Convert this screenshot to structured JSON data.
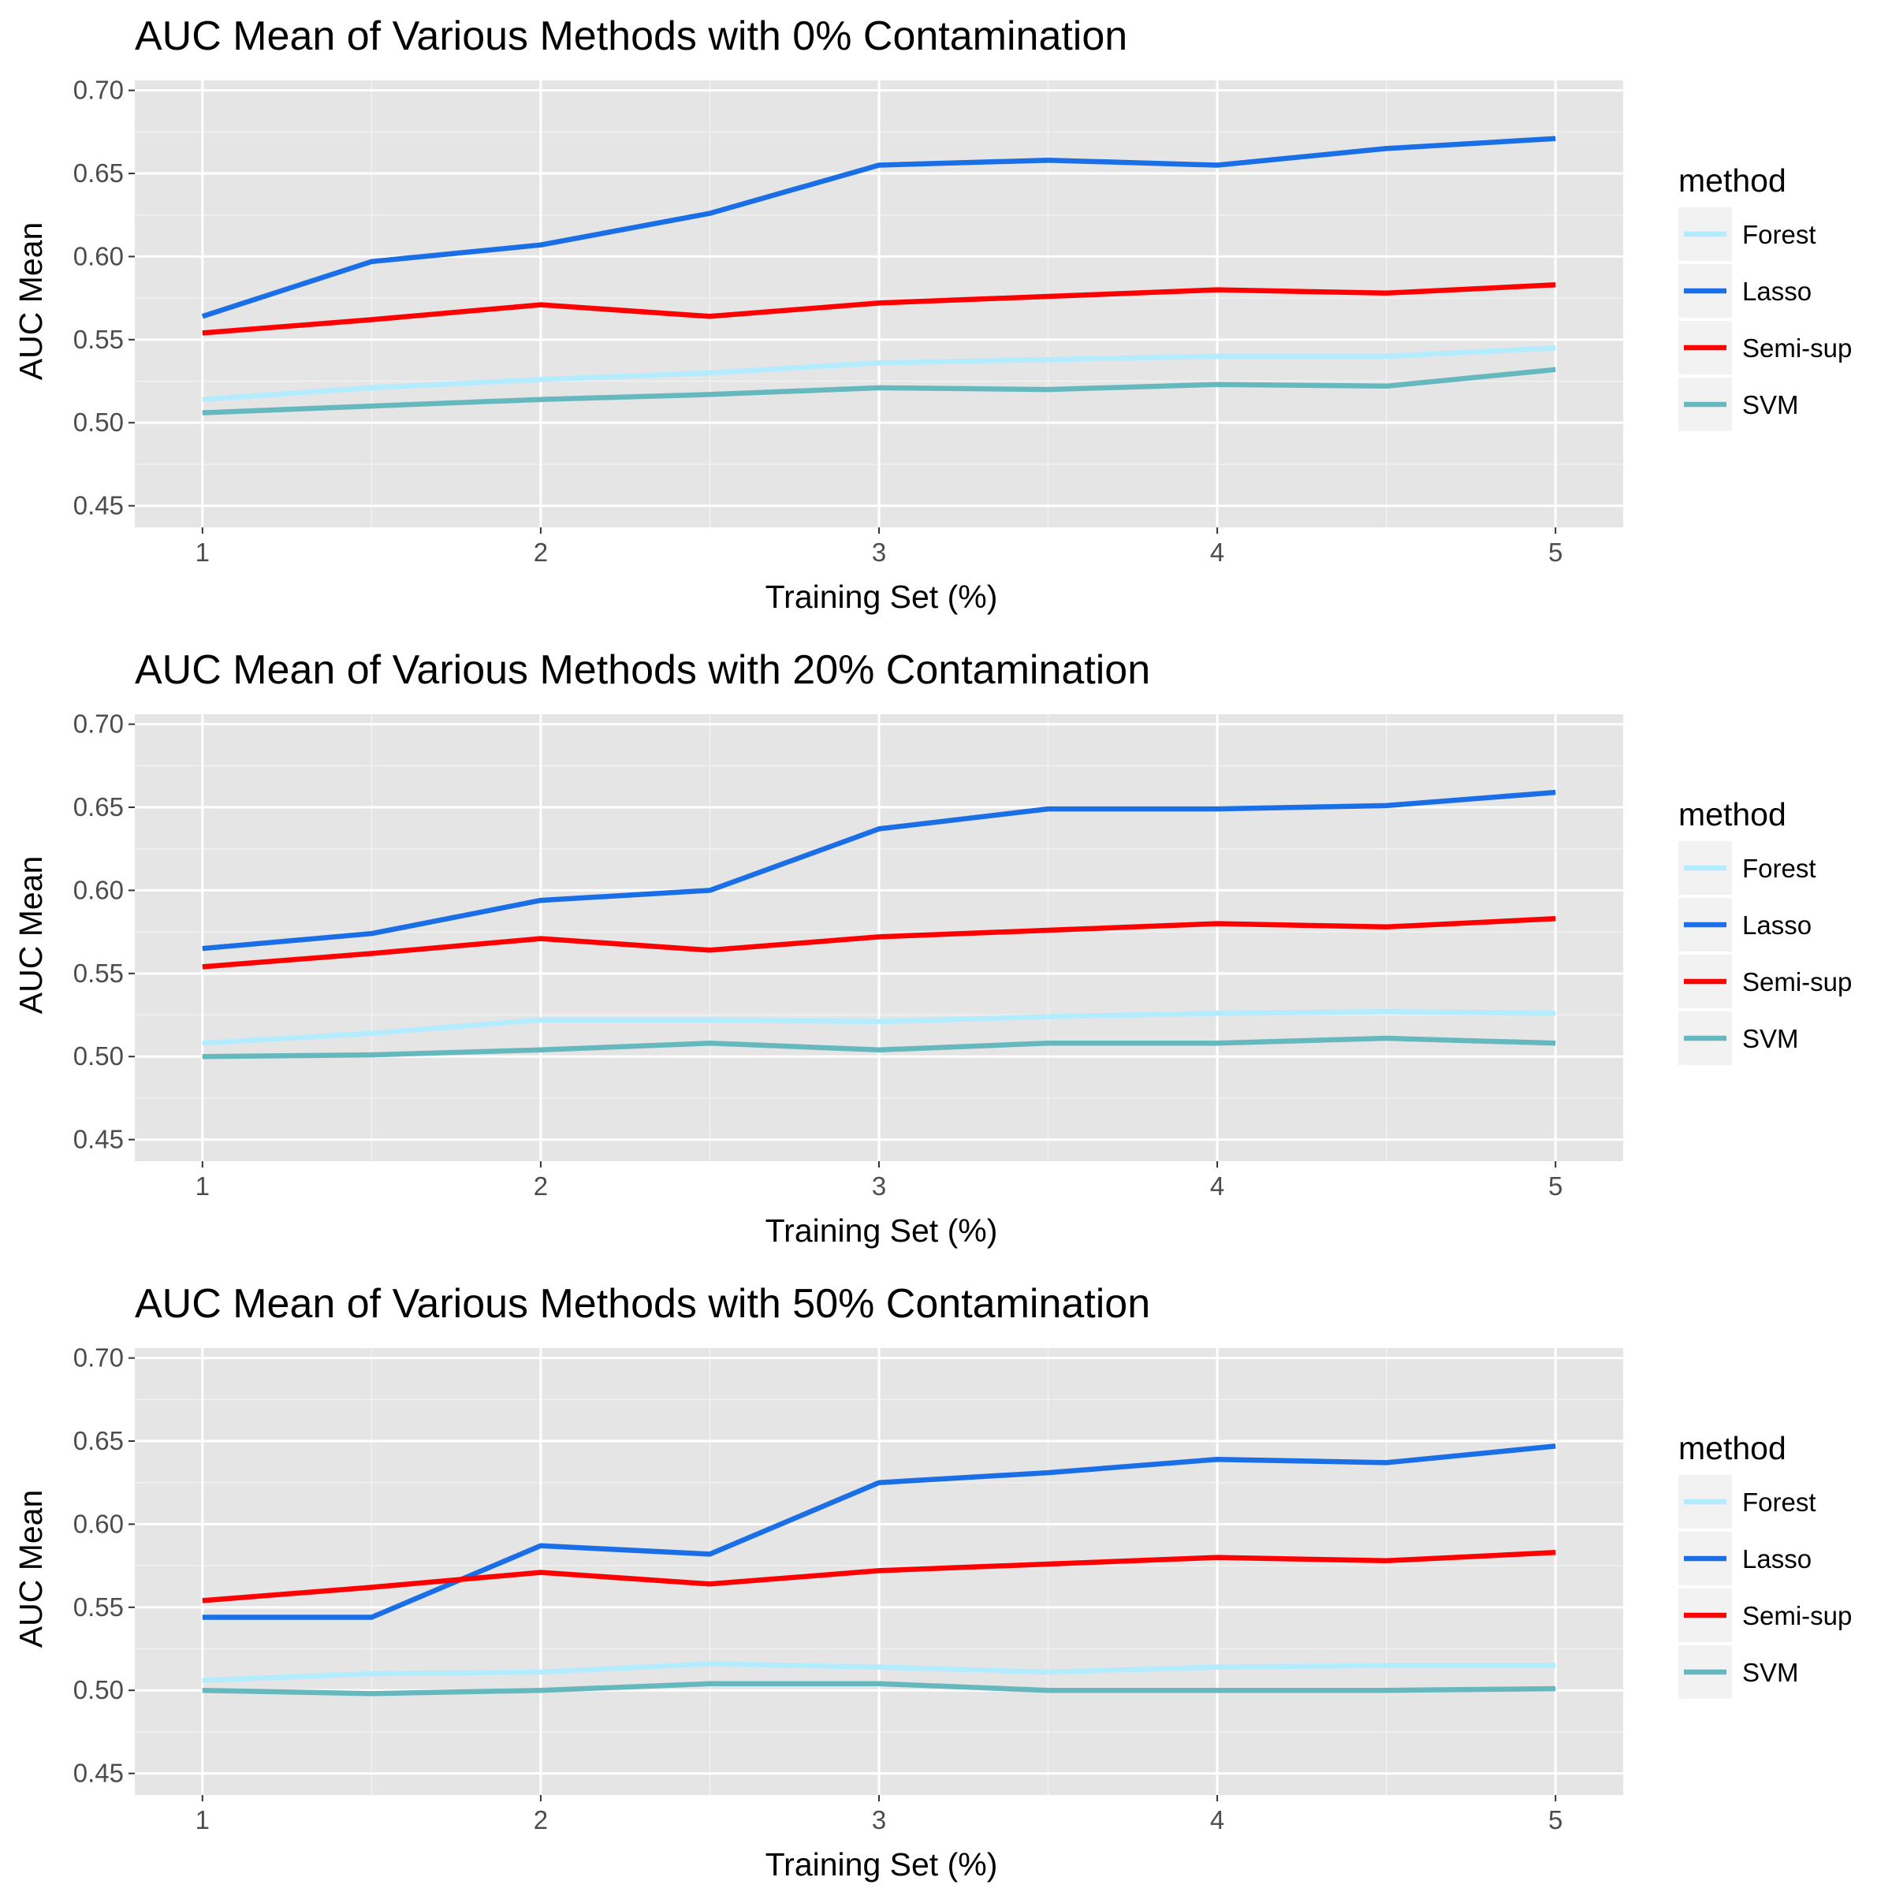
{
  "colors": {
    "panel_bg": "#e5e5e5",
    "grid_major": "#ffffff",
    "grid_minor": "#f2f2f2",
    "legend_key_bg": "#f2f2f2",
    "tick_label": "#4d4d4d"
  },
  "chart_data": [
    {
      "type": "line",
      "title": "AUC Mean of Various Methods with 0% Contamination",
      "xlabel": "Training Set (%)",
      "ylabel": "AUC Mean",
      "x": [
        1,
        1.5,
        2,
        2.5,
        3,
        3.5,
        4,
        4.5,
        5
      ],
      "xticks": [
        "1",
        "2",
        "3",
        "4",
        "5"
      ],
      "yticks": [
        "0.45",
        "0.50",
        "0.55",
        "0.60",
        "0.65",
        "0.70"
      ],
      "xlim": [
        0.8,
        5.2
      ],
      "ylim": [
        0.437,
        0.706
      ],
      "grid": true,
      "legend": {
        "title": "method",
        "position": "right"
      },
      "series": [
        {
          "name": "Forest",
          "color": "#b3ecff",
          "values": [
            0.514,
            0.521,
            0.526,
            0.53,
            0.536,
            0.538,
            0.54,
            0.54,
            0.545
          ]
        },
        {
          "name": "Lasso",
          "color": "#1a6ee6",
          "values": [
            0.564,
            0.597,
            0.607,
            0.626,
            0.655,
            0.658,
            0.655,
            0.665,
            0.671
          ]
        },
        {
          "name": "Semi-sup",
          "color": "#ff0000",
          "values": [
            0.554,
            0.562,
            0.571,
            0.564,
            0.572,
            0.576,
            0.58,
            0.578,
            0.583
          ]
        },
        {
          "name": "SVM",
          "color": "#66b8bf",
          "values": [
            0.506,
            0.51,
            0.514,
            0.517,
            0.521,
            0.52,
            0.523,
            0.522,
            0.532
          ]
        }
      ]
    },
    {
      "type": "line",
      "title": "AUC Mean of Various Methods with 20% Contamination",
      "xlabel": "Training Set (%)",
      "ylabel": "AUC Mean",
      "x": [
        1,
        1.5,
        2,
        2.5,
        3,
        3.5,
        4,
        4.5,
        5
      ],
      "xticks": [
        "1",
        "2",
        "3",
        "4",
        "5"
      ],
      "yticks": [
        "0.45",
        "0.50",
        "0.55",
        "0.60",
        "0.65",
        "0.70"
      ],
      "xlim": [
        0.8,
        5.2
      ],
      "ylim": [
        0.437,
        0.706
      ],
      "grid": true,
      "legend": {
        "title": "method",
        "position": "right"
      },
      "series": [
        {
          "name": "Forest",
          "color": "#b3ecff",
          "values": [
            0.508,
            0.514,
            0.522,
            0.522,
            0.521,
            0.524,
            0.526,
            0.527,
            0.526
          ]
        },
        {
          "name": "Lasso",
          "color": "#1a6ee6",
          "values": [
            0.565,
            0.574,
            0.594,
            0.6,
            0.637,
            0.649,
            0.649,
            0.651,
            0.659
          ]
        },
        {
          "name": "Semi-sup",
          "color": "#ff0000",
          "values": [
            0.554,
            0.562,
            0.571,
            0.564,
            0.572,
            0.576,
            0.58,
            0.578,
            0.583
          ]
        },
        {
          "name": "SVM",
          "color": "#66b8bf",
          "values": [
            0.5,
            0.501,
            0.504,
            0.508,
            0.504,
            0.508,
            0.508,
            0.511,
            0.508
          ]
        }
      ]
    },
    {
      "type": "line",
      "title": "AUC Mean of Various Methods with 50% Contamination",
      "xlabel": "Training Set (%)",
      "ylabel": "AUC Mean",
      "x": [
        1,
        1.5,
        2,
        2.5,
        3,
        3.5,
        4,
        4.5,
        5
      ],
      "xticks": [
        "1",
        "2",
        "3",
        "4",
        "5"
      ],
      "yticks": [
        "0.45",
        "0.50",
        "0.55",
        "0.60",
        "0.65",
        "0.70"
      ],
      "xlim": [
        0.8,
        5.2
      ],
      "ylim": [
        0.437,
        0.706
      ],
      "grid": true,
      "legend": {
        "title": "method",
        "position": "right"
      },
      "series": [
        {
          "name": "Forest",
          "color": "#b3ecff",
          "values": [
            0.506,
            0.51,
            0.511,
            0.516,
            0.514,
            0.511,
            0.514,
            0.515,
            0.515
          ]
        },
        {
          "name": "Lasso",
          "color": "#1a6ee6",
          "values": [
            0.544,
            0.544,
            0.587,
            0.582,
            0.625,
            0.631,
            0.639,
            0.637,
            0.647
          ]
        },
        {
          "name": "Semi-sup",
          "color": "#ff0000",
          "values": [
            0.554,
            0.562,
            0.571,
            0.564,
            0.572,
            0.576,
            0.58,
            0.578,
            0.583
          ]
        },
        {
          "name": "SVM",
          "color": "#66b8bf",
          "values": [
            0.5,
            0.498,
            0.5,
            0.504,
            0.504,
            0.5,
            0.5,
            0.5,
            0.501
          ]
        }
      ]
    }
  ]
}
